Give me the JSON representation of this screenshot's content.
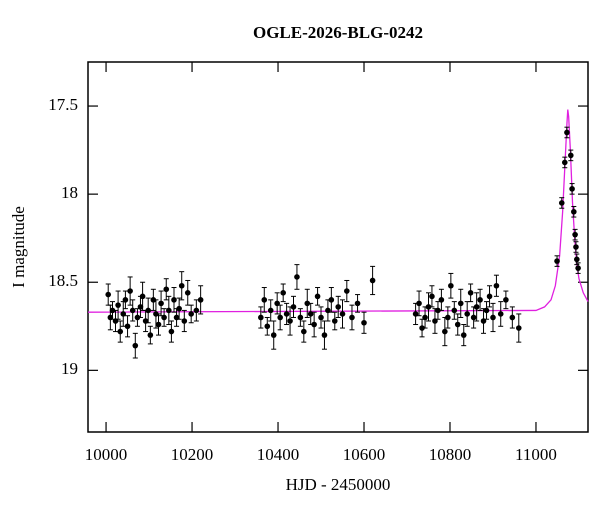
{
  "chart_data": {
    "type": "scatter",
    "title": "OGLE-2026-BLG-0242",
    "x_label": "HJD - 2450000",
    "y_label": "I magnitude",
    "xlim": [
      9958,
      11121
    ],
    "ylim": [
      19.35,
      17.25
    ],
    "xticks": [
      10000,
      10200,
      10400,
      10600,
      10800,
      11000
    ],
    "yticks": [
      17.5,
      18,
      18.5,
      19
    ],
    "series": [
      {
        "type": "scatter",
        "color": "#000000",
        "x": [
          10005,
          10010,
          10015,
          10022,
          10028,
          10033,
          10040,
          10045,
          10050,
          10056,
          10062,
          10068,
          10073,
          10080,
          10085,
          10092,
          10098,
          10103,
          10110,
          10116,
          10122,
          10128,
          10135,
          10140,
          10146,
          10152,
          10158,
          10164,
          10170,
          10176,
          10182,
          10190,
          10198,
          10210,
          10220,
          10360,
          10368,
          10375,
          10383,
          10390,
          10398,
          10405,
          10412,
          10420,
          10428,
          10436,
          10444,
          10452,
          10460,
          10468,
          10476,
          10484,
          10492,
          10500,
          10508,
          10516,
          10524,
          10532,
          10540,
          10550,
          10560,
          10572,
          10585,
          10600,
          10620,
          10720,
          10728,
          10735,
          10742,
          10750,
          10758,
          10765,
          10772,
          10780,
          10788,
          10795,
          10802,
          10810,
          10818,
          10825,
          10832,
          10840,
          10848,
          10855,
          10862,
          10870,
          10878,
          10885,
          10892,
          10900,
          10908,
          10918,
          10930,
          10945,
          10960,
          11049,
          11060,
          11067,
          11072,
          11081,
          11084,
          11088,
          11091,
          11093,
          11095,
          11098
        ],
        "values": [
          18.57,
          18.7,
          18.66,
          18.72,
          18.63,
          18.78,
          18.68,
          18.6,
          18.75,
          18.55,
          18.66,
          18.86,
          18.7,
          18.64,
          18.58,
          18.72,
          18.66,
          18.8,
          18.6,
          18.68,
          18.74,
          18.62,
          18.7,
          18.54,
          18.66,
          18.78,
          18.6,
          18.7,
          18.65,
          18.52,
          18.72,
          18.56,
          18.68,
          18.66,
          18.6,
          18.7,
          18.6,
          18.75,
          18.66,
          18.8,
          18.62,
          18.7,
          18.56,
          18.68,
          18.72,
          18.64,
          18.47,
          18.7,
          18.78,
          18.62,
          18.68,
          18.74,
          18.58,
          18.7,
          18.8,
          18.66,
          18.6,
          18.72,
          18.64,
          18.68,
          18.55,
          18.7,
          18.62,
          18.73,
          18.49,
          18.68,
          18.62,
          18.76,
          18.7,
          18.64,
          18.58,
          18.72,
          18.66,
          18.6,
          18.78,
          18.7,
          18.52,
          18.66,
          18.74,
          18.62,
          18.8,
          18.68,
          18.56,
          18.7,
          18.64,
          18.6,
          18.72,
          18.66,
          18.58,
          18.7,
          18.52,
          18.68,
          18.6,
          18.7,
          18.76,
          18.38,
          18.05,
          17.82,
          17.65,
          17.78,
          17.97,
          18.1,
          18.23,
          18.3,
          18.37,
          18.42
        ],
        "errors": [
          0.06,
          0.07,
          0.05,
          0.06,
          0.08,
          0.06,
          0.07,
          0.05,
          0.06,
          0.08,
          0.06,
          0.07,
          0.05,
          0.06,
          0.08,
          0.06,
          0.07,
          0.05,
          0.06,
          0.08,
          0.06,
          0.07,
          0.05,
          0.06,
          0.08,
          0.06,
          0.07,
          0.05,
          0.06,
          0.08,
          0.06,
          0.07,
          0.05,
          0.06,
          0.08,
          0.06,
          0.07,
          0.05,
          0.06,
          0.08,
          0.06,
          0.07,
          0.05,
          0.06,
          0.08,
          0.06,
          0.07,
          0.05,
          0.06,
          0.08,
          0.06,
          0.07,
          0.05,
          0.06,
          0.08,
          0.06,
          0.07,
          0.05,
          0.06,
          0.08,
          0.06,
          0.07,
          0.05,
          0.06,
          0.08,
          0.06,
          0.07,
          0.05,
          0.06,
          0.08,
          0.06,
          0.07,
          0.05,
          0.06,
          0.08,
          0.06,
          0.07,
          0.05,
          0.06,
          0.08,
          0.06,
          0.07,
          0.05,
          0.06,
          0.08,
          0.06,
          0.07,
          0.05,
          0.06,
          0.08,
          0.06,
          0.07,
          0.05,
          0.06,
          0.08,
          0.03,
          0.03,
          0.03,
          0.03,
          0.03,
          0.03,
          0.03,
          0.03,
          0.03,
          0.03,
          0.03
        ]
      },
      {
        "type": "line",
        "color": "#e020e0",
        "x": [
          9958,
          11000,
          11020,
          11035,
          11045,
          11055,
          11062,
          11068,
          11072,
          11074,
          11076,
          11080,
          11085,
          11090,
          11095,
          11100,
          11110,
          11121
        ],
        "values": [
          18.67,
          18.66,
          18.64,
          18.6,
          18.52,
          18.35,
          18.1,
          17.8,
          17.6,
          17.52,
          17.56,
          17.75,
          18.05,
          18.25,
          18.4,
          18.48,
          18.56,
          18.61
        ]
      }
    ]
  }
}
